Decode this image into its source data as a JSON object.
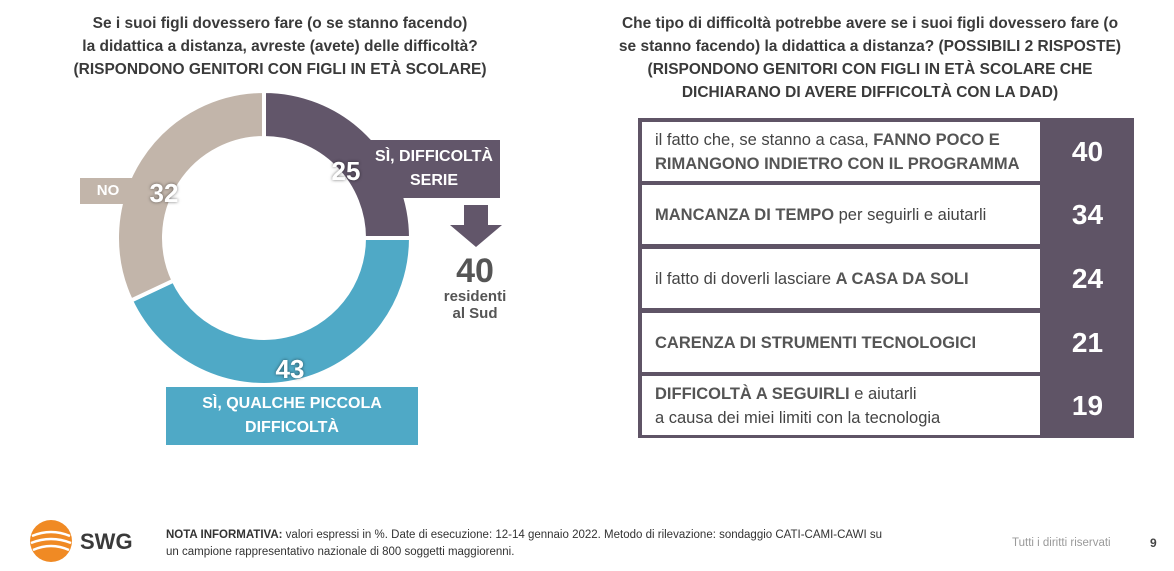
{
  "left_title": {
    "line1": "Se i suoi figli dovessero fare (o se stanno facendo)",
    "line2": "la didattica a distanza, avreste (avete) delle difficoltà?",
    "line3": "(RISPONDONO GENITORI CON FIGLI IN ETÀ SCOLARE)"
  },
  "right_title": {
    "line1": "Che tipo di difficoltà potrebbe avere se i suoi figli dovessero fare (o",
    "line2": "se stanno facendo) la didattica a distanza? (POSSIBILI 2 RISPOSTE)",
    "line3": "(RISPONDONO GENITORI CON FIGLI IN ETÀ SCOLARE CHE",
    "line4": "DICHIARANO DI AVERE DIFFICOLTÀ CON LA DAD)"
  },
  "chart_data": [
    {
      "type": "pie",
      "categories": [
        "SÌ, DIFFICOLTÀ SERIE",
        "SÌ, QUALCHE PICCOLA DIFFICOLTÀ",
        "NO"
      ],
      "values": [
        25,
        43,
        32
      ],
      "value_labels": [
        "25",
        "43",
        "32"
      ],
      "colors": [
        "#62566a",
        "#4fa9c6",
        "#c2b5aa"
      ],
      "label_lines": {
        "serie": [
          "SÌ, DIFFICOLTÀ",
          "SERIE"
        ],
        "piccola": [
          "SÌ, QUALCHE PICCOLA",
          "DIFFICOLTÀ"
        ],
        "no": "NO"
      },
      "callout": {
        "value": "40",
        "line1": "residenti",
        "line2": "al Sud"
      }
    },
    {
      "type": "table",
      "rows": [
        {
          "pre": "il fatto che, se stanno a casa, ",
          "bold": "FANNO POCO E",
          "line2_bold": "RIMANGONO INDIETRO CON IL PROGRAMMA",
          "post": "",
          "value": 40
        },
        {
          "pre": "",
          "bold": "MANCANZA DI TEMPO",
          "line2_bold": "",
          "post": " per seguirli e aiutarli",
          "value": 34
        },
        {
          "pre": "il fatto di doverli lasciare ",
          "bold": "A CASA DA SOLI",
          "line2_bold": "",
          "post": "",
          "value": 24
        },
        {
          "pre": "",
          "bold": "CARENZA DI STRUMENTI TECNOLOGICI",
          "line2_bold": "",
          "post": "",
          "value": 21
        },
        {
          "pre": "",
          "bold": "DIFFICOLTÀ A SEGUIRLI",
          "line2_bold": "",
          "post": " e aiutarli",
          "line2": "a causa dei miei limiti con la tecnologia",
          "value": 19
        }
      ]
    }
  ],
  "footer": {
    "brand": "SWG",
    "note_bold": "NOTA INFORMATIVA:",
    "note_line1": " valori espressi in %. Date di esecuzione: 12-14 gennaio 2022. Metodo di rilevazione: sondaggio CATI-CAMI-CAWI su",
    "note_line2": "un campione rappresentativo nazionale di 800 soggetti maggiorenni.",
    "rights": "Tutti i diritti riservati",
    "page": "9"
  },
  "colors": {
    "dark": "#62566a",
    "blue": "#4fa9c6",
    "grey": "#c2b5aa",
    "table_bg": "#5f5466",
    "logo_orange": "#f08a24"
  }
}
